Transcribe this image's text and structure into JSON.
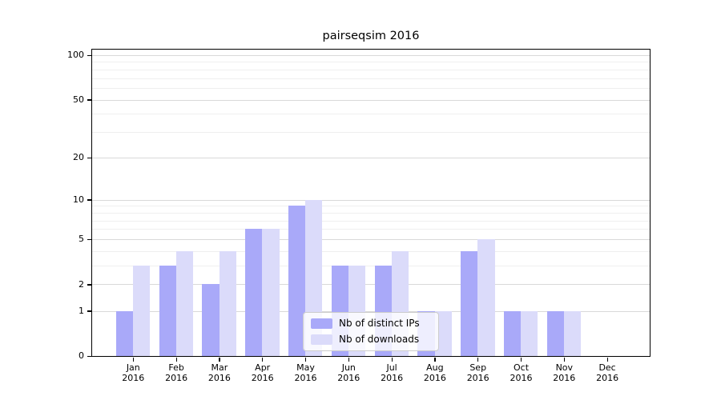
{
  "chart_data": {
    "type": "bar",
    "title": "pairseqsim 2016",
    "categories": [
      "Jan",
      "Feb",
      "Mar",
      "Apr",
      "May",
      "Jun",
      "Jul",
      "Aug",
      "Sep",
      "Oct",
      "Nov",
      "Dec"
    ],
    "year": "2016",
    "series": [
      {
        "name": "Nb of distinct IPs",
        "color": "#a9a9f9",
        "values": [
          1,
          3,
          2,
          6,
          9,
          3,
          3,
          1,
          4,
          1,
          1,
          0
        ]
      },
      {
        "name": "Nb of downloads",
        "color": "#dbdbfa",
        "values": [
          3,
          4,
          4,
          6,
          10,
          3,
          4,
          1,
          5,
          1,
          1,
          0
        ]
      }
    ],
    "yscale": "log1p",
    "ylim": [
      0,
      109
    ],
    "y_ticks": [
      {
        "value": 0,
        "label": "0"
      },
      {
        "value": 1,
        "label": "1"
      },
      {
        "value": 2,
        "label": "2"
      },
      {
        "value": 5,
        "label": "5"
      },
      {
        "value": 10,
        "label": "10"
      },
      {
        "value": 20,
        "label": "20"
      },
      {
        "value": 50,
        "label": "50"
      },
      {
        "value": 100,
        "label": "100"
      }
    ],
    "y_minor_ticks": [
      3,
      4,
      6,
      7,
      8,
      9,
      30,
      40,
      60,
      70,
      80,
      90
    ],
    "grid": true,
    "legend_position": "lower center"
  }
}
